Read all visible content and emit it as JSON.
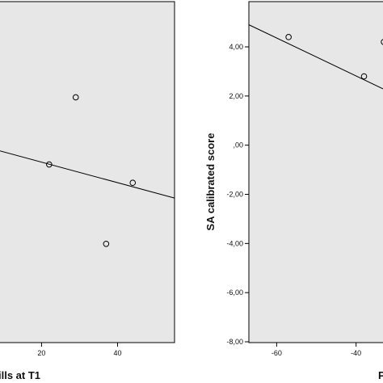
{
  "background_color": "#e7e7e7",
  "chart_data": [
    {
      "type": "scatter",
      "title": "",
      "xlabel": "ills at T1",
      "ylabel": "",
      "xlim": [
        8,
        55
      ],
      "x_ticks": [
        "20",
        "40"
      ],
      "x_tick_values": [
        20,
        40
      ],
      "grid": false,
      "points": [
        {
          "x": 22,
          "y": 0.6
        },
        {
          "x": 29,
          "y": 1.7
        },
        {
          "x": 37,
          "y": -0.7
        },
        {
          "x": 44,
          "y": 0.3
        }
      ],
      "fit_line": {
        "x": [
          8,
          55
        ],
        "y": [
          0.84,
          0.05
        ]
      }
    },
    {
      "type": "scatter",
      "title": "",
      "xlabel": "P",
      "ylabel": "SA calibrated score",
      "ylim": [
        -8.2,
        6
      ],
      "y_ticks": [
        "4,00",
        "2,00",
        ",00",
        "-2,00",
        "-4,00",
        "-6,00",
        "-8,00"
      ],
      "y_tick_values": [
        4,
        2,
        0,
        -2,
        -4,
        -6,
        -8
      ],
      "x_ticks": [
        "-60",
        "-40"
      ],
      "x_tick_values": [
        -60,
        -40
      ],
      "xlim": [
        -67,
        -32
      ],
      "grid": false,
      "points": [
        {
          "x": -57,
          "y": 4.4
        },
        {
          "x": -38,
          "y": 2.8
        },
        {
          "x": -33,
          "y": 4.2
        }
      ],
      "fit_line": {
        "x": [
          -67,
          -32
        ],
        "y": [
          4.9,
          2.2
        ]
      }
    }
  ]
}
